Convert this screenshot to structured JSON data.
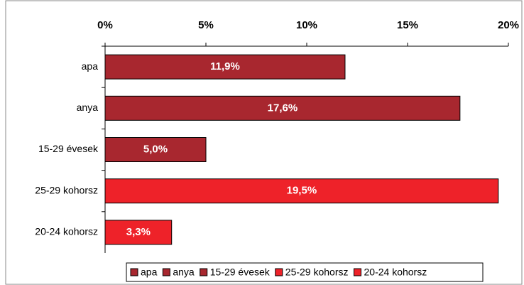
{
  "chart_data": {
    "type": "bar",
    "orientation": "horizontal",
    "categories": [
      "apa",
      "anya",
      "15-29 évesek",
      "25-29 kohorsz",
      "20-24 kohorsz"
    ],
    "values": [
      11.9,
      17.6,
      5.0,
      19.5,
      3.3
    ],
    "value_labels": [
      "11,9%",
      "17,6%",
      "5,0%",
      "19,5%",
      "3,3%"
    ],
    "colors": [
      "#a8272f",
      "#a8272f",
      "#a8272f",
      "#ee2229",
      "#ee2229"
    ],
    "xlim": [
      0,
      20
    ],
    "xticks": [
      {
        "value": 0,
        "label": "0%"
      },
      {
        "value": 5,
        "label": "5%"
      },
      {
        "value": 10,
        "label": "10%"
      },
      {
        "value": 15,
        "label": "15%"
      },
      {
        "value": 20,
        "label": "20%"
      }
    ],
    "legend": "bottom"
  }
}
